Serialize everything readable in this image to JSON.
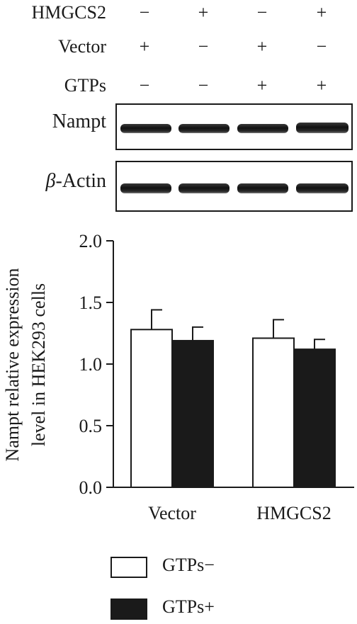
{
  "treatment_table": {
    "rows": [
      {
        "label": "HMGCS2",
        "signs": [
          "−",
          "+",
          "−",
          "+"
        ]
      },
      {
        "label": "Vector",
        "signs": [
          "+",
          "−",
          "+",
          "−"
        ]
      },
      {
        "label": "GTPs",
        "signs": [
          "−",
          "−",
          "+",
          "+"
        ]
      }
    ]
  },
  "blots": [
    {
      "label": "Nampt",
      "band_intensity": [
        0.9,
        0.95,
        0.9,
        1.0
      ]
    },
    {
      "label_greek": "β",
      "label_rest": "-Actin",
      "band_intensity": [
        1.0,
        1.0,
        1.0,
        1.0
      ]
    }
  ],
  "chart_data": {
    "type": "bar",
    "categories": [
      "Vector",
      "HMGCS2"
    ],
    "series": [
      {
        "name": "GTPs−",
        "values": [
          1.28,
          1.21
        ],
        "errors": [
          0.16,
          0.15
        ],
        "color": "#ffffff"
      },
      {
        "name": "GTPs+",
        "values": [
          1.19,
          1.12
        ],
        "errors": [
          0.11,
          0.08
        ],
        "color": "#1a1a1a"
      }
    ],
    "ylabel_line1": "Nampt relative expression",
    "ylabel_line2": "level in HEK293 cells",
    "ylim": [
      0,
      2.0
    ],
    "yticks": [
      "0.0",
      "0.5",
      "1.0",
      "1.5",
      "2.0"
    ],
    "ytick_values": [
      0.0,
      0.5,
      1.0,
      1.5,
      2.0
    ],
    "legend_position": "bottom"
  }
}
